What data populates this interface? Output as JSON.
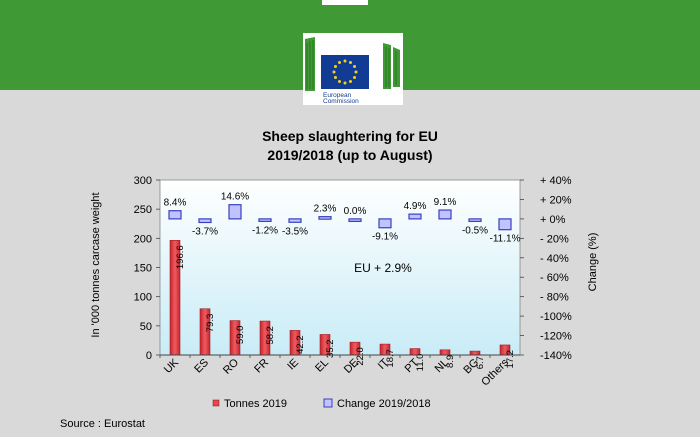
{
  "logo": {
    "line1": "European",
    "line2": "Commission"
  },
  "chart_data": {
    "type": "bar",
    "title_line1": "Sheep slaughtering for EU",
    "title_line2": "2019/2018 (up to August)",
    "ylabel": "In '000 tonnes carcase  weight",
    "y2label": "Change  (%)",
    "ylim": [
      0,
      300
    ],
    "y2lim": [
      -140,
      40
    ],
    "yticks": [
      "0",
      "50",
      "100",
      "150",
      "200",
      "250",
      "300"
    ],
    "y2ticks": [
      "-140%",
      "-120%",
      "-100%",
      "- 80%",
      "- 60%",
      "- 40%",
      "- 20%",
      "+ 0%",
      "+ 20%",
      "+ 40%"
    ],
    "categories": [
      "UK",
      "ES",
      "RO",
      "FR",
      "IE",
      "EL",
      "DE",
      "IT",
      "PT",
      "NL",
      "BG",
      "Others"
    ],
    "series": [
      {
        "name": "Tonnes 2019",
        "values": [
          196.6,
          79.3,
          59.0,
          58.2,
          42.2,
          35.2,
          22.0,
          18.7,
          11.0,
          8.9,
          6.7,
          17.2
        ],
        "labels": [
          "196.6",
          "79.3",
          "59.0",
          "58.2",
          "42.2",
          "35.2",
          "22.0",
          "18.7",
          "11.0",
          "8.9",
          "6.7",
          "17.2"
        ]
      },
      {
        "name": "Change 2019/2018",
        "values": [
          8.4,
          -3.7,
          14.6,
          -1.2,
          -3.5,
          2.3,
          0.0,
          -9.1,
          4.9,
          9.1,
          -0.5,
          -11.1
        ],
        "labels": [
          "8.4%",
          "-3.7%",
          "14.6%",
          "-1.2%",
          "-3.5%",
          "2.3%",
          "0.0%",
          "-9.1%",
          "4.9%",
          "9.1%",
          "-0.5%",
          "-11.1%"
        ]
      }
    ],
    "annotation": "EU  + 2.9%",
    "legend_position": "bottom",
    "bar_color": "#e5454d",
    "change_color": "#3a3fc0",
    "source": "Source : Eurostat"
  }
}
